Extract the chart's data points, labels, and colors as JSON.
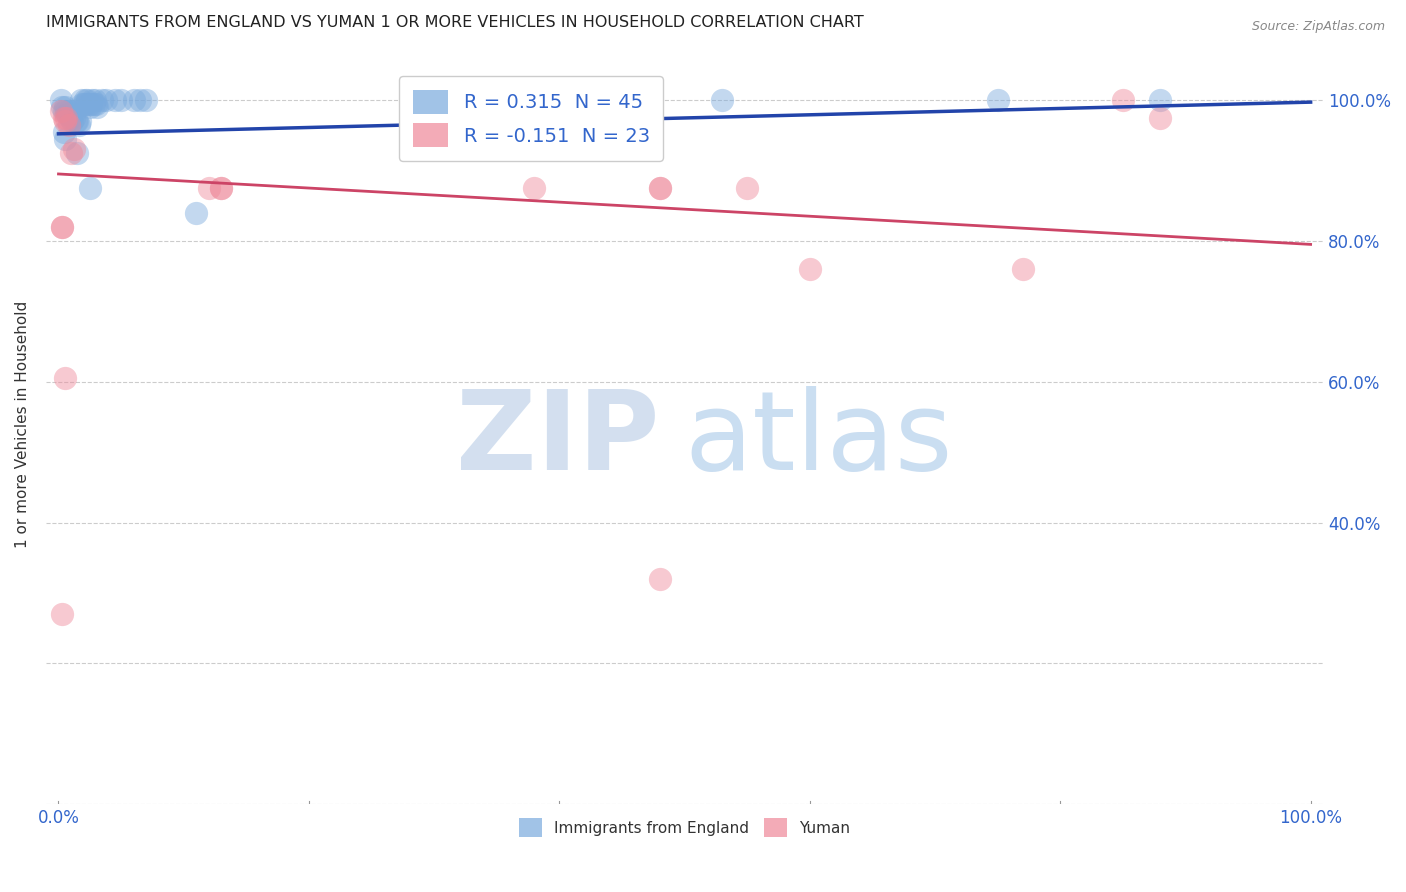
{
  "title": "IMMIGRANTS FROM ENGLAND VS YUMAN 1 OR MORE VEHICLES IN HOUSEHOLD CORRELATION CHART",
  "source": "Source: ZipAtlas.com",
  "ylabel": "1 or more Vehicles in Household",
  "blue_color": "#7aaadd",
  "pink_color": "#ee8899",
  "blue_line_color": "#2244aa",
  "pink_line_color": "#cc4466",
  "blue_dots": [
    [
      0.002,
      1.0
    ],
    [
      0.003,
      0.99
    ],
    [
      0.004,
      0.985
    ],
    [
      0.005,
      0.99
    ],
    [
      0.006,
      0.985
    ],
    [
      0.007,
      0.98
    ],
    [
      0.008,
      0.985
    ],
    [
      0.009,
      0.975
    ],
    [
      0.01,
      0.975
    ],
    [
      0.011,
      0.97
    ],
    [
      0.012,
      0.975
    ],
    [
      0.013,
      0.985
    ],
    [
      0.014,
      0.97
    ],
    [
      0.015,
      0.97
    ],
    [
      0.016,
      0.965
    ],
    [
      0.017,
      0.97
    ],
    [
      0.018,
      1.0
    ],
    [
      0.019,
      0.995
    ],
    [
      0.02,
      0.995
    ],
    [
      0.021,
      1.0
    ],
    [
      0.022,
      0.995
    ],
    [
      0.023,
      1.0
    ],
    [
      0.024,
      0.995
    ],
    [
      0.025,
      0.99
    ],
    [
      0.026,
      0.995
    ],
    [
      0.027,
      1.0
    ],
    [
      0.028,
      0.995
    ],
    [
      0.029,
      1.0
    ],
    [
      0.03,
      0.995
    ],
    [
      0.031,
      0.99
    ],
    [
      0.035,
      1.0
    ],
    [
      0.038,
      1.0
    ],
    [
      0.045,
      1.0
    ],
    [
      0.05,
      1.0
    ],
    [
      0.06,
      1.0
    ],
    [
      0.065,
      1.0
    ],
    [
      0.07,
      1.0
    ],
    [
      0.004,
      0.955
    ],
    [
      0.005,
      0.945
    ],
    [
      0.015,
      0.925
    ],
    [
      0.025,
      0.875
    ],
    [
      0.11,
      0.84
    ],
    [
      0.53,
      1.0
    ],
    [
      0.75,
      1.0
    ],
    [
      0.88,
      1.0
    ]
  ],
  "pink_dots": [
    [
      0.002,
      0.985
    ],
    [
      0.004,
      0.975
    ],
    [
      0.005,
      0.97
    ],
    [
      0.006,
      0.975
    ],
    [
      0.008,
      0.965
    ],
    [
      0.01,
      0.925
    ],
    [
      0.012,
      0.93
    ],
    [
      0.003,
      0.82
    ],
    [
      0.12,
      0.875
    ],
    [
      0.13,
      0.875
    ],
    [
      0.38,
      0.875
    ],
    [
      0.48,
      0.875
    ],
    [
      0.6,
      0.76
    ],
    [
      0.005,
      0.605
    ],
    [
      0.48,
      0.32
    ],
    [
      0.003,
      0.27
    ],
    [
      0.85,
      1.0
    ],
    [
      0.88,
      0.975
    ],
    [
      0.55,
      0.875
    ],
    [
      0.77,
      0.76
    ],
    [
      0.003,
      0.82
    ],
    [
      0.13,
      0.875
    ],
    [
      0.48,
      0.875
    ]
  ],
  "blue_R": 0.315,
  "blue_N": 45,
  "pink_R": -0.151,
  "pink_N": 23,
  "xlim": [
    0.0,
    1.0
  ],
  "ylim": [
    0.0,
    1.08
  ],
  "yticks": [
    0.0,
    0.2,
    0.4,
    0.6,
    0.8,
    1.0
  ],
  "ytick_right_labels": [
    "",
    "",
    "40.0%",
    "60.0%",
    "80.0%",
    "100.0%"
  ],
  "xticks": [
    0.0,
    0.2,
    0.4,
    0.6,
    0.8,
    1.0
  ],
  "xtick_labels": [
    "0.0%",
    "",
    "",
    "",
    "",
    "100.0%"
  ],
  "legend_bottom": [
    "Immigrants from England",
    "Yuman"
  ],
  "blue_line_start_y": 0.952,
  "blue_line_end_y": 0.997,
  "pink_line_start_y": 0.895,
  "pink_line_end_y": 0.795
}
